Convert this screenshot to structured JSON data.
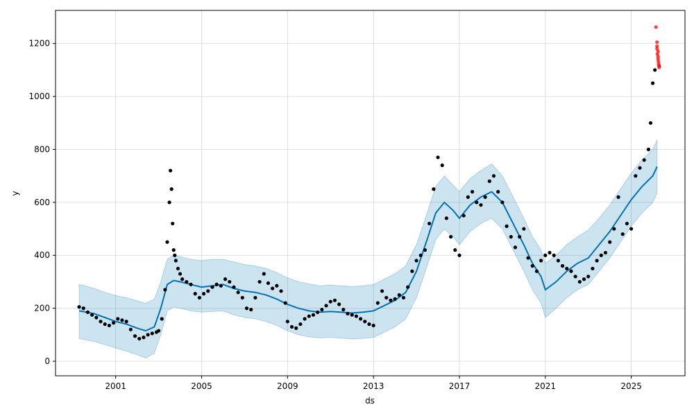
{
  "chart_data": {
    "type": "line",
    "title": "",
    "xlabel": "ds",
    "ylabel": "y",
    "xlim": [
      1998.2,
      2027.5
    ],
    "ylim": [
      -55,
      1325
    ],
    "x_ticks": [
      2001,
      2005,
      2009,
      2013,
      2017,
      2021,
      2025
    ],
    "y_ticks": [
      0,
      200,
      400,
      600,
      800,
      1000,
      1200
    ],
    "grid": true,
    "legend": "none",
    "colors": {
      "forecast_line": "#0072b2",
      "uncertainty_band": "#0072b2",
      "observed_points": "#000000",
      "highlighted_points": "#ff0000"
    },
    "series": [
      {
        "name": "yhat",
        "kind": "line",
        "x": [
          1999.3,
          2000.0,
          2000.5,
          2001.0,
          2001.5,
          2002.0,
          2002.4,
          2002.8,
          2003.1,
          2003.4,
          2003.7,
          2004.0,
          2004.5,
          2005.0,
          2005.5,
          2006.0,
          2006.5,
          2007.0,
          2007.5,
          2008.0,
          2008.5,
          2009.0,
          2009.5,
          2010.0,
          2010.5,
          2011.0,
          2011.5,
          2012.0,
          2012.5,
          2013.0,
          2013.5,
          2014.0,
          2014.5,
          2015.0,
          2015.5,
          2015.9,
          2016.3,
          2016.7,
          2017.0,
          2017.5,
          2018.0,
          2018.5,
          2019.0,
          2019.5,
          2020.0,
          2020.4,
          2020.8,
          2021.0,
          2021.5,
          2022.0,
          2022.5,
          2023.0,
          2023.5,
          2024.0,
          2024.5,
          2025.0,
          2025.5,
          2026.0,
          2026.2
        ],
        "y": [
          190,
          180,
          165,
          150,
          140,
          125,
          115,
          130,
          200,
          290,
          305,
          300,
          290,
          280,
          285,
          290,
          275,
          265,
          260,
          250,
          235,
          215,
          200,
          190,
          185,
          188,
          185,
          182,
          185,
          190,
          210,
          230,
          260,
          340,
          460,
          560,
          600,
          570,
          540,
          590,
          620,
          640,
          600,
          520,
          440,
          370,
          320,
          270,
          300,
          340,
          370,
          390,
          440,
          490,
          550,
          610,
          660,
          700,
          735
        ]
      },
      {
        "name": "yhat_upper",
        "kind": "band",
        "x": [
          1999.3,
          2000.0,
          2000.5,
          2001.0,
          2001.5,
          2002.0,
          2002.4,
          2002.8,
          2003.1,
          2003.4,
          2003.7,
          2004.0,
          2004.5,
          2005.0,
          2005.5,
          2006.0,
          2006.5,
          2007.0,
          2007.5,
          2008.0,
          2008.5,
          2009.0,
          2009.5,
          2010.0,
          2010.5,
          2011.0,
          2011.5,
          2012.0,
          2012.5,
          2013.0,
          2013.5,
          2014.0,
          2014.5,
          2015.0,
          2015.5,
          2015.9,
          2016.3,
          2016.7,
          2017.0,
          2017.5,
          2018.0,
          2018.5,
          2019.0,
          2019.5,
          2020.0,
          2020.4,
          2020.8,
          2021.0,
          2021.5,
          2022.0,
          2022.5,
          2023.0,
          2023.5,
          2024.0,
          2024.5,
          2025.0,
          2025.5,
          2026.0,
          2026.2
        ],
        "y": [
          290,
          275,
          260,
          248,
          240,
          228,
          218,
          235,
          300,
          385,
          400,
          395,
          385,
          380,
          385,
          385,
          375,
          365,
          360,
          350,
          335,
          315,
          300,
          292,
          285,
          288,
          285,
          282,
          285,
          290,
          310,
          330,
          360,
          440,
          560,
          660,
          700,
          665,
          640,
          690,
          720,
          745,
          700,
          620,
          540,
          470,
          420,
          370,
          400,
          440,
          470,
          495,
          540,
          590,
          650,
          710,
          760,
          800,
          835
        ]
      },
      {
        "name": "yhat_lower",
        "kind": "band",
        "x": [
          1999.3,
          2000.0,
          2000.5,
          2001.0,
          2001.5,
          2002.0,
          2002.4,
          2002.8,
          2003.1,
          2003.4,
          2003.7,
          2004.0,
          2004.5,
          2005.0,
          2005.5,
          2006.0,
          2006.5,
          2007.0,
          2007.5,
          2008.0,
          2008.5,
          2009.0,
          2009.5,
          2010.0,
          2010.5,
          2011.0,
          2011.5,
          2012.0,
          2012.5,
          2013.0,
          2013.5,
          2014.0,
          2014.5,
          2015.0,
          2015.5,
          2015.9,
          2016.3,
          2016.7,
          2017.0,
          2017.5,
          2018.0,
          2018.5,
          2019.0,
          2019.5,
          2020.0,
          2020.4,
          2020.8,
          2021.0,
          2021.5,
          2022.0,
          2022.5,
          2023.0,
          2023.5,
          2024.0,
          2024.5,
          2025.0,
          2025.5,
          2026.0,
          2026.2
        ],
        "y": [
          85,
          75,
          62,
          50,
          38,
          25,
          12,
          30,
          100,
          190,
          205,
          200,
          190,
          185,
          188,
          190,
          175,
          165,
          160,
          150,
          135,
          115,
          100,
          92,
          88,
          90,
          87,
          84,
          86,
          90,
          110,
          130,
          160,
          240,
          360,
          460,
          500,
          470,
          440,
          490,
          520,
          540,
          500,
          420,
          340,
          270,
          220,
          165,
          200,
          240,
          270,
          290,
          340,
          390,
          450,
          510,
          560,
          600,
          635
        ]
      },
      {
        "name": "y",
        "kind": "scatter",
        "x": [
          1999.3,
          1999.5,
          1999.7,
          1999.9,
          2000.1,
          2000.3,
          2000.5,
          2000.7,
          2000.9,
          2001.1,
          2001.3,
          2001.5,
          2001.7,
          2001.9,
          2002.1,
          2002.3,
          2002.5,
          2002.7,
          2002.9,
          2003.0,
          2003.15,
          2003.3,
          2003.4,
          2003.5,
          2003.55,
          2003.6,
          2003.65,
          2003.7,
          2003.75,
          2003.8,
          2003.9,
          2004.0,
          2004.1,
          2004.3,
          2004.5,
          2004.7,
          2004.9,
          2005.1,
          2005.3,
          2005.5,
          2005.7,
          2005.9,
          2006.1,
          2006.3,
          2006.5,
          2006.7,
          2006.9,
          2007.1,
          2007.3,
          2007.5,
          2007.7,
          2007.9,
          2008.1,
          2008.3,
          2008.5,
          2008.7,
          2008.9,
          2009.0,
          2009.2,
          2009.4,
          2009.6,
          2009.8,
          2010.0,
          2010.2,
          2010.4,
          2010.6,
          2010.8,
          2011.0,
          2011.2,
          2011.4,
          2011.6,
          2011.8,
          2012.0,
          2012.2,
          2012.4,
          2012.6,
          2012.8,
          2013.0,
          2013.2,
          2013.4,
          2013.6,
          2013.8,
          2014.0,
          2014.2,
          2014.4,
          2014.6,
          2014.8,
          2015.0,
          2015.2,
          2015.4,
          2015.6,
          2015.8,
          2016.0,
          2016.2,
          2016.4,
          2016.6,
          2016.8,
          2017.0,
          2017.2,
          2017.4,
          2017.6,
          2017.8,
          2018.0,
          2018.2,
          2018.4,
          2018.6,
          2018.8,
          2019.0,
          2019.2,
          2019.4,
          2019.6,
          2019.8,
          2020.0,
          2020.2,
          2020.4,
          2020.6,
          2020.8,
          2021.0,
          2021.2,
          2021.4,
          2021.6,
          2021.8,
          2022.0,
          2022.2,
          2022.4,
          2022.6,
          2022.8,
          2023.0,
          2023.2,
          2023.4,
          2023.6,
          2023.8,
          2024.0,
          2024.2,
          2024.4,
          2024.6,
          2024.8,
          2025.0,
          2025.2,
          2025.4,
          2025.6,
          2025.8,
          2025.9,
          2026.0,
          2026.1
        ],
        "y": [
          205,
          200,
          185,
          175,
          165,
          150,
          140,
          135,
          145,
          160,
          155,
          150,
          120,
          95,
          85,
          90,
          100,
          105,
          110,
          115,
          160,
          270,
          450,
          600,
          720,
          650,
          520,
          420,
          400,
          380,
          350,
          330,
          310,
          300,
          290,
          255,
          240,
          255,
          265,
          280,
          290,
          285,
          310,
          300,
          280,
          260,
          240,
          200,
          195,
          240,
          300,
          330,
          295,
          275,
          285,
          265,
          220,
          150,
          130,
          125,
          140,
          160,
          170,
          175,
          185,
          195,
          210,
          225,
          230,
          215,
          195,
          180,
          175,
          170,
          160,
          150,
          140,
          135,
          220,
          265,
          240,
          230,
          235,
          250,
          240,
          280,
          340,
          380,
          400,
          420,
          520,
          650,
          770,
          740,
          540,
          470,
          420,
          400,
          550,
          620,
          640,
          600,
          590,
          620,
          680,
          700,
          640,
          600,
          510,
          470,
          430,
          470,
          500,
          390,
          360,
          340,
          380,
          400,
          410,
          400,
          380,
          360,
          350,
          340,
          320,
          300,
          310,
          320,
          350,
          380,
          400,
          410,
          450,
          500,
          620,
          480,
          520,
          500,
          700,
          730,
          760,
          800,
          900,
          1050,
          1100
        ]
      },
      {
        "name": "",
        "kind": "scatter-highlight",
        "x": [
          2026.15,
          2026.2,
          2026.2,
          2026.22,
          2026.25,
          2026.25,
          2026.27,
          2026.28,
          2026.3,
          2026.3,
          2026.2,
          2026.25
        ],
        "y": [
          1262,
          1205,
          1180,
          1160,
          1150,
          1140,
          1130,
          1120,
          1115,
          1110,
          1190,
          1170
        ]
      }
    ]
  }
}
